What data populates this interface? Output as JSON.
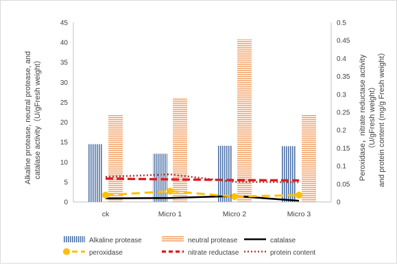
{
  "chart_data": {
    "type": "bar",
    "categories": [
      "ck",
      "Micro 1",
      "Micro 2",
      "Micro 3"
    ],
    "left_axis": {
      "label_lines": [
        "Alkaline protease, neutral protease, and",
        "catalase activity（U/gFresh weight）"
      ],
      "ylim": [
        0,
        45
      ],
      "ticks": [
        "0",
        "5",
        "10",
        "15",
        "20",
        "25",
        "30",
        "35",
        "40",
        "45"
      ],
      "tick_values": [
        0,
        5,
        10,
        15,
        20,
        25,
        30,
        35,
        40,
        45
      ]
    },
    "right_axis": {
      "label_lines": [
        "Peroxidase，nitrate reductase activity",
        "（U/gFresh weight）",
        "and protein content (mg/g Fresh weight）"
      ],
      "ylim": [
        0,
        0.5
      ],
      "ticks": [
        "0",
        "0.05",
        "0.1",
        "0.15",
        "0.2",
        "0.25",
        "0.3",
        "0.35",
        "0.4",
        "0.45",
        "0.5"
      ],
      "tick_values": [
        0,
        0.05,
        0.1,
        0.15,
        0.2,
        0.25,
        0.3,
        0.35,
        0.4,
        0.45,
        0.5
      ]
    },
    "series": [
      {
        "name": "Alkaline protease",
        "kind": "bar",
        "axis": "left",
        "style": "vstripes",
        "color": "#4a6fa5",
        "values": [
          14.5,
          12.1,
          14.1,
          14.0
        ]
      },
      {
        "name": "neutral protease",
        "kind": "bar",
        "axis": "left",
        "style": "hstripes",
        "color": "#f2a46a",
        "values": [
          21.8,
          26.0,
          40.8,
          22.0
        ]
      },
      {
        "name": "catalase",
        "kind": "line",
        "axis": "left",
        "style": "solid",
        "color": "#000000",
        "values": [
          0.9,
          1.0,
          1.5,
          0.3
        ]
      },
      {
        "name": "peroxidase",
        "kind": "line",
        "axis": "right",
        "style": "dash-marker",
        "color": "#ffc000",
        "values": [
          0.019,
          0.03,
          0.015,
          0.019
        ]
      },
      {
        "name": "nitrate reductase",
        "kind": "line",
        "axis": "right",
        "style": "dash-arrow",
        "color": "#e31a1c",
        "values": [
          0.065,
          0.063,
          0.061,
          0.06
        ]
      },
      {
        "name": "protein content",
        "kind": "line",
        "axis": "right",
        "style": "dotted",
        "color": "#a0403a",
        "values": [
          0.07,
          0.077,
          0.056,
          0.055
        ]
      }
    ],
    "grid": false,
    "legend_position": "bottom"
  }
}
